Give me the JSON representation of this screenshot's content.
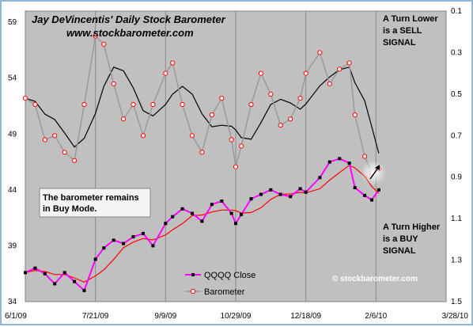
{
  "chart_data": {
    "type": "line",
    "title": "Jay DeVincentis' Daily Stock Barometer",
    "subtitle": "www.stockbarometer.com",
    "x_ticks": [
      "6/1/09",
      "7/21/09",
      "9/9/09",
      "10/29/09",
      "12/18/09",
      "2/6/10",
      "3/28/10"
    ],
    "x_range": [
      "6/1/09",
      "3/28/10"
    ],
    "y_left_ticks": [
      59,
      54,
      49,
      44,
      39,
      34
    ],
    "y_left_range": [
      34,
      60
    ],
    "y_right_ticks": [
      0.1,
      0.3,
      0.5,
      0.7,
      0.9,
      1.1,
      1.3,
      1.5
    ],
    "y_right_range": [
      0.1,
      1.5
    ],
    "y_right_inverted": true,
    "grid": "vertical",
    "background_color": "#c0c0c0",
    "colors": {
      "qqqq_line": "#ff00ff",
      "qqqq_marker": "#000000",
      "qqqq_avg": "#ff0000",
      "barometer_line": "#9a9a9a",
      "barometer_marker": "#ff0000",
      "barometer_avg": "#000000"
    },
    "legend": {
      "placement": "bottom-center",
      "entries": [
        "QQQQ Close",
        "Barometer"
      ]
    },
    "annotations": {
      "sell_lines": [
        "A Turn Lower",
        "is a SELL",
        "SIGNAL"
      ],
      "buy_lines": [
        "A Turn Higher",
        "is a BUY",
        "SIGNAL"
      ],
      "mode_lines": [
        "The barometer remains",
        "in Buy Mode."
      ],
      "watermark": "© stockbarometer.com"
    },
    "series": [
      {
        "name": "QQQQ Close",
        "axis": "left",
        "x": [
          "6/1/09",
          "6/8/09",
          "6/15/09",
          "6/22/09",
          "6/29/09",
          "7/6/09",
          "7/13/09",
          "7/21/09",
          "7/27/09",
          "8/3/09",
          "8/10/09",
          "8/17/09",
          "8/24/09",
          "8/31/09",
          "9/9/09",
          "9/14/09",
          "9/21/09",
          "9/28/09",
          "10/5/09",
          "10/12/09",
          "10/19/09",
          "10/26/09",
          "10/29/09",
          "11/2/09",
          "11/9/09",
          "11/16/09",
          "11/23/09",
          "11/30/09",
          "12/7/09",
          "12/14/09",
          "12/18/09",
          "12/28/09",
          "1/4/10",
          "1/11/10",
          "1/18/10",
          "1/22/10",
          "1/29/10",
          "2/3/10",
          "2/8/10"
        ],
        "values": [
          36.6,
          37.0,
          36.5,
          35.6,
          36.6,
          35.8,
          35.0,
          37.8,
          38.8,
          39.5,
          39.2,
          39.8,
          40.1,
          39.0,
          41.0,
          41.6,
          42.3,
          41.9,
          41.2,
          42.7,
          43.0,
          41.9,
          41.0,
          41.8,
          43.2,
          43.6,
          44.0,
          43.6,
          43.4,
          44.1,
          43.8,
          45.1,
          46.5,
          46.8,
          46.4,
          44.2,
          43.5,
          43.1,
          44.0
        ]
      },
      {
        "name": "Barometer",
        "axis": "right",
        "x": [
          "6/1/09",
          "6/8/09",
          "6/15/09",
          "6/22/09",
          "6/29/09",
          "7/6/09",
          "7/13/09",
          "7/21/09",
          "7/27/09",
          "8/3/09",
          "8/10/09",
          "8/17/09",
          "8/24/09",
          "8/31/09",
          "9/9/09",
          "9/14/09",
          "9/21/09",
          "9/28/09",
          "10/5/09",
          "10/12/09",
          "10/19/09",
          "10/26/09",
          "10/29/09",
          "11/2/09",
          "11/9/09",
          "11/16/09",
          "11/23/09",
          "11/30/09",
          "12/7/09",
          "12/14/09",
          "12/18/09",
          "12/28/09",
          "1/4/10",
          "1/11/10",
          "1/18/10",
          "1/22/10",
          "1/29/10",
          "2/3/10",
          "2/8/10"
        ],
        "values": [
          0.52,
          0.55,
          0.72,
          0.7,
          0.78,
          0.82,
          0.55,
          0.22,
          0.26,
          0.45,
          0.62,
          0.55,
          0.7,
          0.55,
          0.4,
          0.35,
          0.55,
          0.7,
          0.78,
          0.6,
          0.52,
          0.72,
          0.85,
          0.75,
          0.55,
          0.4,
          0.5,
          0.65,
          0.62,
          0.52,
          0.4,
          0.3,
          0.45,
          0.38,
          0.35,
          0.6,
          0.8,
          0.88,
          0.86
        ]
      }
    ]
  }
}
